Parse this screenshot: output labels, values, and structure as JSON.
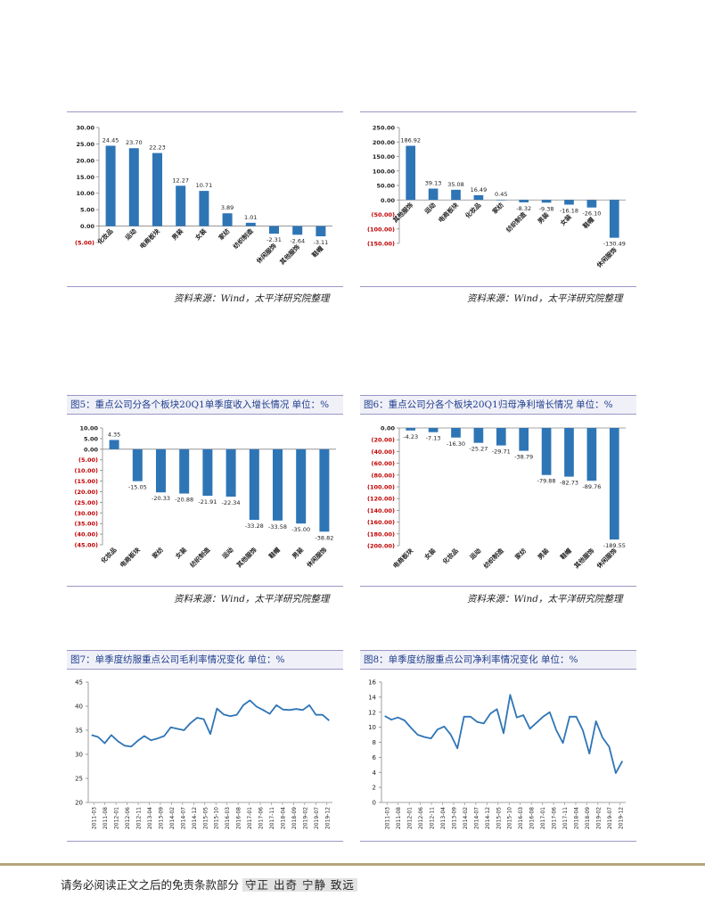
{
  "chart_data": [
    {
      "id": "c1",
      "type": "bar",
      "title": "",
      "categories": [
        "化妆品",
        "运动",
        "电商板块",
        "男装",
        "女装",
        "家纺",
        "纺织制造",
        "休闲服饰",
        "其他服饰",
        "鞋帽"
      ],
      "values": [
        24.45,
        23.7,
        22.23,
        12.27,
        10.71,
        3.89,
        1.01,
        -2.31,
        -2.64,
        -3.11
      ],
      "value_labels": [
        "24.45",
        "23.70",
        "22.23",
        "12.27",
        "10.71",
        "3.89",
        "1.01",
        "-2.31",
        "-2.64",
        "-3.11"
      ],
      "yticks": [
        "30.00",
        "25.00",
        "20.00",
        "15.00",
        "10.00",
        "5.00",
        "0.00",
        "(5.00)"
      ],
      "ylim": [
        -5,
        30
      ],
      "ystep": 5
    },
    {
      "id": "c2",
      "type": "bar",
      "title": "",
      "categories": [
        "其他服饰",
        "运动",
        "电商板块",
        "化妆品",
        "家纺",
        "纺织制造",
        "男装",
        "女装",
        "鞋帽",
        "休闲服饰"
      ],
      "values": [
        186.92,
        39.13,
        35.08,
        16.49,
        0.45,
        -8.32,
        -9.38,
        -16.18,
        -26.1,
        -130.49
      ],
      "value_labels": [
        "186.92",
        "39.13",
        "35.08",
        "16.49",
        "0.45",
        "-8.32",
        "-9.38",
        "-16.18",
        "-26.10",
        "-130.49"
      ],
      "yticks": [
        "250.00",
        "200.00",
        "150.00",
        "100.00",
        "50.00",
        "0.00",
        "(50.00)",
        "(100.00)",
        "(150.00)"
      ],
      "ylim": [
        -150,
        250
      ],
      "ystep": 50
    },
    {
      "id": "c3",
      "type": "bar",
      "title": "图5：重点公司分各个板块20Q1单季度收入增长情况  单位：%",
      "categories": [
        "化妆品",
        "电商板块",
        "家纺",
        "女装",
        "纺织制造",
        "运动",
        "其他服饰",
        "鞋帽",
        "男装",
        "休闲服饰"
      ],
      "values": [
        4.35,
        -15.05,
        -20.33,
        -20.88,
        -21.91,
        -22.34,
        -33.28,
        -33.58,
        -35.0,
        -38.82
      ],
      "value_labels": [
        "4.35",
        "-15.05",
        "-20.33",
        "-20.88",
        "-21.91",
        "-22.34",
        "-33.28",
        "-33.58",
        "-35.00",
        "-38.82"
      ],
      "yticks": [
        "10.00",
        "5.00",
        "0.00",
        "(5.00)",
        "(10.00)",
        "(15.00)",
        "(20.00)",
        "(25.00)",
        "(30.00)",
        "(35.00)",
        "(40.00)",
        "(45.00)"
      ],
      "ylim": [
        -45,
        10
      ],
      "ystep": 5
    },
    {
      "id": "c4",
      "type": "bar",
      "title": "图6：重点公司分各个板块20Q1归母净利增长情况  单位：%",
      "categories": [
        "电商板块",
        "女装",
        "化妆品",
        "运动",
        "纺织制造",
        "家纺",
        "男装",
        "鞋帽",
        "其他服饰",
        "休闲服饰"
      ],
      "values": [
        -4.23,
        -7.13,
        -16.3,
        -25.27,
        -29.71,
        -38.79,
        -79.88,
        -82.73,
        -89.76,
        -189.55
      ],
      "value_labels": [
        "-4.23",
        "-7.13",
        "-16.30",
        "-25.27",
        "-29.71",
        "-38.79",
        "-79.88",
        "-82.73",
        "-89.76",
        "-189.55"
      ],
      "yticks": [
        "0.00",
        "(20.00)",
        "(40.00)",
        "(60.00)",
        "(80.00)",
        "(100.00)",
        "(120.00)",
        "(140.00)",
        "(160.00)",
        "(180.00)",
        "(200.00)"
      ],
      "ylim": [
        -200,
        0
      ],
      "ystep": 20
    },
    {
      "id": "c5",
      "type": "line",
      "title": "图7：单季度纺服重点公司毛利率情况变化  单位：%",
      "xticks": [
        "2011-03",
        "2011-08",
        "2012-01",
        "2012-06",
        "2012-11",
        "2013-04",
        "2013-09",
        "2014-02",
        "2014-07",
        "2014-12",
        "2015-05",
        "2015-10",
        "2016-03",
        "2016-08",
        "2017-01",
        "2017-06",
        "2017-11",
        "2018-04",
        "2018-09",
        "2019-02",
        "2019-07",
        "2019-12"
      ],
      "values": [
        34.0,
        33.6,
        32.3,
        34.0,
        32.7,
        31.8,
        31.6,
        32.8,
        33.8,
        32.9,
        33.3,
        33.8,
        35.6,
        35.3,
        35.0,
        36.5,
        37.6,
        37.3,
        34.2,
        39.5,
        38.3,
        37.9,
        38.2,
        40.2,
        41.2,
        39.9,
        39.2,
        38.4,
        40.2,
        39.3,
        39.2,
        39.4,
        39.2,
        40.2,
        38.2,
        38.2,
        37.0
      ],
      "ylim": [
        20,
        45
      ],
      "ystep": 5,
      "yticks": [
        "45",
        "40",
        "35",
        "30",
        "25",
        "20"
      ]
    },
    {
      "id": "c6",
      "type": "line",
      "title": "图8：单季度纺服重点公司净利率情况变化  单位：%",
      "xticks": [
        "2011-03",
        "2011-08",
        "2012-01",
        "2012-06",
        "2012-11",
        "2013-04",
        "2013-09",
        "2014-02",
        "2014-07",
        "2014-12",
        "2015-05",
        "2015-10",
        "2016-03",
        "2016-08",
        "2017-01",
        "2017-06",
        "2017-11",
        "2018-04",
        "2018-09",
        "2019-02",
        "2019-07",
        "2019-12"
      ],
      "values": [
        11.5,
        11.0,
        11.3,
        10.9,
        9.9,
        9.0,
        8.7,
        8.5,
        9.7,
        10.1,
        9.0,
        7.2,
        11.4,
        11.4,
        10.7,
        10.5,
        11.8,
        12.4,
        9.2,
        14.3,
        11.3,
        11.6,
        9.8,
        10.6,
        11.4,
        12.0,
        9.6,
        7.9,
        11.4,
        11.4,
        9.6,
        6.5,
        10.8,
        8.6,
        7.4,
        3.9,
        5.5
      ],
      "ylim": [
        0,
        16
      ],
      "ystep": 2,
      "yticks": [
        "16",
        "14",
        "12",
        "10",
        "8",
        "6",
        "4",
        "2",
        "0"
      ]
    }
  ],
  "sources": {
    "s1": "资料来源：Wind，太平洋研究院整理",
    "s2": "资料来源：Wind，太平洋研究院整理",
    "s3": "资料来源：Wind，太平洋研究院整理",
    "s4": "资料来源：Wind，太平洋研究院整理"
  },
  "footer": {
    "disclaimer": "请务必阅读正文之后的免责条款部分",
    "motto": "守正  出奇  宁静  致远"
  },
  "colors": {
    "bar": "#2e75b6",
    "negative_tick": "#c00000",
    "frame": "#9a98c7",
    "title_text": "#1f3e8c"
  }
}
